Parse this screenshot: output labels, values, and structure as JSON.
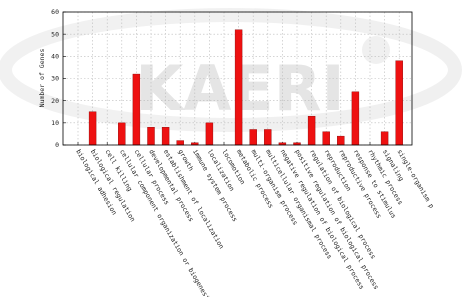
{
  "chart_data": {
    "type": "bar",
    "watermark": "KAERI",
    "y_label": "Number of Genes",
    "categories": [
      "biological adhesion",
      "biological regulation",
      "cell killing",
      "cellular component organization or biogenesis",
      "cellular process",
      "developmental process",
      "establishment of localization",
      "growth",
      "immune system process",
      "localization",
      "locomotion",
      "metabolic process",
      "multi-organism process",
      "multicellular organismal process",
      "negative regulation of biological process",
      "positive regulation of biological process",
      "regulation of biological process",
      "reproduction",
      "reproductive process",
      "response to stimulus",
      "rhythmic process",
      "signaling",
      "single-organism p"
    ],
    "values": [
      0,
      15,
      0,
      10,
      32,
      8,
      8,
      2,
      1,
      10,
      0,
      52,
      7,
      7,
      1,
      1,
      13,
      6,
      4,
      24,
      0,
      6,
      38
    ],
    "color": "#ee1111",
    "ylim": [
      0,
      60
    ],
    "yticks": [
      0,
      10,
      20,
      30,
      40,
      50,
      60
    ],
    "grid": true
  }
}
